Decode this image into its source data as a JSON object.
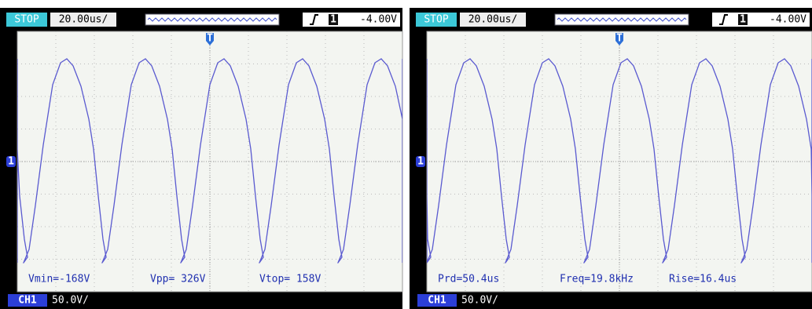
{
  "screens": [
    {
      "status": "STOP",
      "timebase": "20.00us/",
      "trigger_source": "1",
      "trigger_level": "-4.00V",
      "trigger_marker": "T",
      "channel_marker": "1",
      "measurements": [
        "Vmin=-168V",
        "Vpp= 326V",
        "Vtop= 158V"
      ],
      "channel": "CH1",
      "volts_per_div": "50.0V/"
    },
    {
      "status": "STOP",
      "timebase": "20.00us/",
      "trigger_source": "1",
      "trigger_level": "-4.00V",
      "trigger_marker": "T",
      "channel_marker": "1",
      "measurements": [
        "Prd=50.4us",
        "Freq=19.8kHz",
        "Rise=16.4us"
      ],
      "channel": "CH1",
      "volts_per_div": "50.0V/"
    }
  ]
}
